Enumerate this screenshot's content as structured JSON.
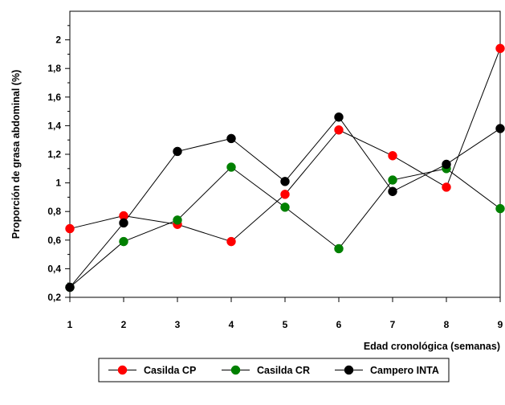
{
  "chart_data": {
    "type": "line",
    "title": "",
    "xlabel": "Edad cronológica (semanas)",
    "ylabel": "Proporción de grasa abdominal (%)",
    "x": [
      1,
      2,
      3,
      4,
      5,
      6,
      7,
      8,
      9
    ],
    "x_tick_labels": [
      "1",
      "2",
      "3",
      "4",
      "5",
      "6",
      "7",
      "8",
      "9"
    ],
    "xlim": [
      1,
      9
    ],
    "ylim": [
      0.2,
      2.2
    ],
    "y_ticks": [
      0.2,
      0.4,
      0.6,
      0.8,
      1.0,
      1.2,
      1.4,
      1.6,
      1.8,
      2.0
    ],
    "y_tick_labels": [
      "0,2",
      "0,4",
      "0,6",
      "0,8",
      "1",
      "1,2",
      "1,4",
      "1,6",
      "1,8",
      "2"
    ],
    "grid": false,
    "legend_position": "bottom",
    "series": [
      {
        "name": "Casilda CP",
        "color": "#ff0000",
        "values": [
          0.68,
          0.77,
          0.71,
          0.59,
          0.92,
          1.37,
          1.19,
          0.97,
          1.94
        ]
      },
      {
        "name": "Casilda CR",
        "color": "#008000",
        "values": [
          0.27,
          0.59,
          0.74,
          1.11,
          0.83,
          0.54,
          1.02,
          1.1,
          0.82
        ]
      },
      {
        "name": "Campero INTA",
        "color": "#000000",
        "values": [
          0.27,
          0.72,
          1.22,
          1.31,
          1.01,
          1.46,
          0.94,
          1.13,
          1.38
        ]
      }
    ]
  }
}
